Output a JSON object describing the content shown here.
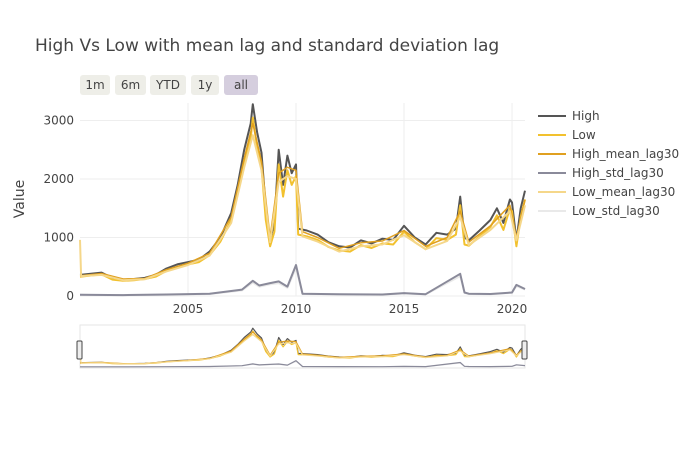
{
  "chart_data": {
    "type": "line",
    "title": "High Vs Low with mean lag and standard deviation lag",
    "xlabel": "",
    "ylabel": "Value",
    "x_ticks": [
      "2005",
      "2010",
      "2015",
      "2020"
    ],
    "y_ticks": [
      "0",
      "1000",
      "2000",
      "3000"
    ],
    "ylim": [
      0,
      3300
    ],
    "xlim": [
      2000.0,
      2020.6
    ],
    "grid": true,
    "legend_position": "right",
    "range_selector": {
      "buttons": [
        "1m",
        "6m",
        "YTD",
        "1y",
        "all"
      ],
      "active": "all"
    },
    "range_slider": true,
    "series": [
      {
        "name": "High",
        "color": "#555555",
        "opacity": 1.0,
        "x": [
          2000.0,
          2000.5,
          2001.0,
          2001.5,
          2002.0,
          2002.5,
          2003.0,
          2003.5,
          2004.0,
          2004.5,
          2005.0,
          2005.5,
          2006.0,
          2006.5,
          2007.0,
          2007.3,
          2007.6,
          2007.9,
          2008.0,
          2008.2,
          2008.4,
          2008.6,
          2008.8,
          2009.0,
          2009.2,
          2009.4,
          2009.6,
          2009.8,
          2010.0,
          2010.1,
          2010.5,
          2011.0,
          2011.5,
          2012.0,
          2012.5,
          2013.0,
          2013.5,
          2014.0,
          2014.5,
          2015.0,
          2015.5,
          2016.0,
          2016.5,
          2017.0,
          2017.4,
          2017.6,
          2017.8,
          2018.0,
          2018.5,
          2019.0,
          2019.3,
          2019.6,
          2019.9,
          2020.0,
          2020.2,
          2020.4,
          2020.6
        ],
        "y": [
          360,
          380,
          400,
          310,
          280,
          290,
          310,
          360,
          470,
          540,
          580,
          620,
          760,
          1000,
          1420,
          1900,
          2500,
          2950,
          3280,
          2800,
          2450,
          1500,
          950,
          1250,
          2500,
          1900,
          2400,
          2100,
          2250,
          1150,
          1120,
          1050,
          920,
          850,
          830,
          950,
          900,
          980,
          960,
          1200,
          1000,
          880,
          1080,
          1050,
          1150,
          1700,
          1000,
          950,
          1120,
          1300,
          1500,
          1250,
          1650,
          1600,
          950,
          1500,
          1800
        ]
      },
      {
        "name": "Low",
        "color": "#f2c12e",
        "opacity": 1.0,
        "x": [
          2000.0,
          2000.5,
          2001.0,
          2001.5,
          2002.0,
          2002.5,
          2003.0,
          2003.5,
          2004.0,
          2004.5,
          2005.0,
          2005.5,
          2006.0,
          2006.5,
          2007.0,
          2007.3,
          2007.6,
          2007.9,
          2008.0,
          2008.2,
          2008.4,
          2008.6,
          2008.8,
          2009.0,
          2009.2,
          2009.4,
          2009.6,
          2009.8,
          2010.0,
          2010.1,
          2010.5,
          2011.0,
          2011.5,
          2012.0,
          2012.5,
          2013.0,
          2013.5,
          2014.0,
          2014.5,
          2015.0,
          2015.5,
          2016.0,
          2016.5,
          2017.0,
          2017.4,
          2017.6,
          2017.8,
          2018.0,
          2018.5,
          2019.0,
          2019.3,
          2019.6,
          2019.9,
          2020.0,
          2020.2,
          2020.4,
          2020.6
        ],
        "y": [
          330,
          350,
          370,
          280,
          260,
          270,
          290,
          330,
          430,
          500,
          540,
          580,
          700,
          930,
          1300,
          1750,
          2300,
          2700,
          3050,
          2550,
          2200,
          1300,
          850,
          1100,
          2250,
          1700,
          2150,
          1900,
          2050,
          1050,
          1020,
          960,
          840,
          780,
          760,
          870,
          820,
          900,
          880,
          1100,
          920,
          800,
          990,
          960,
          1050,
          1550,
          880,
          860,
          1020,
          1180,
          1380,
          1130,
          1500,
          1450,
          850,
          1350,
          1650
        ]
      },
      {
        "name": "High_mean_lag30",
        "color": "#e0a020",
        "opacity": 1.0,
        "x": [
          2000.0,
          2001.0,
          2002.0,
          2003.0,
          2004.0,
          2005.0,
          2006.0,
          2007.0,
          2007.6,
          2008.0,
          2008.4,
          2008.8,
          2009.2,
          2009.6,
          2010.0,
          2010.3,
          2011.0,
          2012.0,
          2013.0,
          2014.0,
          2015.0,
          2016.0,
          2017.0,
          2017.6,
          2018.0,
          2019.0,
          2019.9,
          2020.2,
          2020.6
        ],
        "y": [
          345,
          385,
          290,
          300,
          450,
          560,
          730,
          1350,
          2350,
          2950,
          2300,
          1000,
          2100,
          2200,
          2150,
          1100,
          1000,
          815,
          910,
          940,
          1120,
          850,
          1000,
          1450,
          920,
          1200,
          1550,
          1000,
          1650
        ]
      },
      {
        "name": "High_std_lag30",
        "color": "#8a8a9a",
        "opacity": 1.0,
        "x": [
          2000.0,
          2002.0,
          2004.0,
          2006.0,
          2007.5,
          2008.0,
          2008.3,
          2008.8,
          2009.2,
          2009.6,
          2010.0,
          2010.3,
          2012.0,
          2014.0,
          2015.0,
          2016.0,
          2017.6,
          2017.8,
          2018.0,
          2019.0,
          2020.0,
          2020.2,
          2020.6
        ],
        "y": [
          20,
          15,
          25,
          40,
          110,
          260,
          180,
          220,
          250,
          160,
          530,
          40,
          30,
          25,
          50,
          30,
          380,
          60,
          40,
          35,
          60,
          190,
          120
        ]
      },
      {
        "name": "Low_mean_lag30",
        "color": "#f5d78a",
        "opacity": 1.0,
        "x": [
          2000.0,
          2000.05,
          2001.0,
          2002.0,
          2003.0,
          2004.0,
          2005.0,
          2006.0,
          2007.0,
          2007.6,
          2008.0,
          2008.4,
          2008.8,
          2009.2,
          2009.6,
          2010.0,
          2010.3,
          2011.0,
          2012.0,
          2013.0,
          2014.0,
          2015.0,
          2016.0,
          2017.0,
          2017.6,
          2018.0,
          2019.0,
          2019.9,
          2020.2,
          2020.6
        ],
        "y": [
          960,
          340,
          360,
          270,
          285,
          420,
          530,
          690,
          1250,
          2200,
          2750,
          2150,
          920,
          1950,
          2050,
          2000,
          1020,
          930,
          760,
          850,
          880,
          1040,
          800,
          940,
          1350,
          870,
          1130,
          1450,
          950,
          1550
        ]
      },
      {
        "name": "Low_std_lag30",
        "color": "#e4e4e4",
        "opacity": 0.8,
        "x": [
          2000.0,
          2002.0,
          2004.0,
          2006.0,
          2007.5,
          2008.0,
          2008.3,
          2008.8,
          2009.2,
          2009.6,
          2010.0,
          2010.3,
          2012.0,
          2014.0,
          2015.0,
          2016.0,
          2017.6,
          2017.8,
          2018.0,
          2019.0,
          2020.0,
          2020.2,
          2020.6
        ],
        "y": [
          18,
          14,
          22,
          35,
          95,
          230,
          160,
          200,
          220,
          140,
          480,
          35,
          28,
          22,
          45,
          28,
          340,
          55,
          35,
          30,
          55,
          170,
          110
        ]
      }
    ]
  }
}
